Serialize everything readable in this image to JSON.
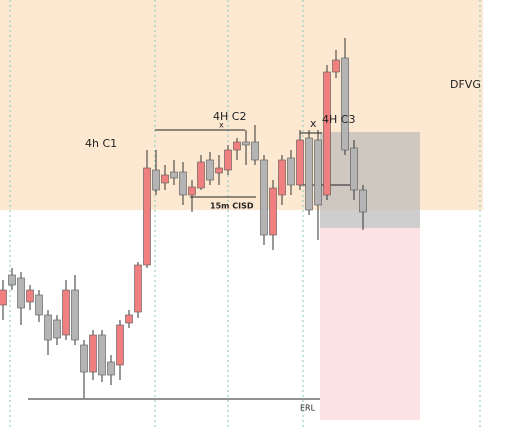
{
  "chart_data": {
    "type": "candlestick",
    "open": [
      122,
      152,
      149,
      125,
      132,
      112,
      107,
      92,
      137,
      82,
      55,
      92,
      65,
      62,
      104,
      115,
      162,
      257,
      244,
      255,
      255,
      232,
      239,
      267,
      254,
      257,
      277,
      285,
      285,
      267,
      192,
      232,
      269,
      242,
      289,
      287,
      232,
      355,
      369,
      279,
      237
    ],
    "high": [
      147,
      159,
      155,
      142,
      137,
      117,
      112,
      147,
      152,
      87,
      97,
      97,
      72,
      107,
      117,
      165,
      277,
      277,
      262,
      267,
      265,
      247,
      272,
      275,
      272,
      282,
      289,
      297,
      302,
      272,
      247,
      272,
      277,
      297,
      297,
      297,
      362,
      377,
      389,
      287,
      242
    ],
    "low": [
      107,
      137,
      102,
      117,
      105,
      72,
      82,
      87,
      82,
      29,
      47,
      45,
      42,
      47,
      99,
      109,
      159,
      232,
      237,
      242,
      222,
      215,
      237,
      242,
      242,
      252,
      267,
      262,
      262,
      182,
      177,
      222,
      232,
      237,
      212,
      187,
      227,
      349,
      272,
      227,
      197
    ],
    "close": [
      137,
      142,
      119,
      137,
      112,
      87,
      89,
      137,
      87,
      55,
      92,
      52,
      52,
      102,
      112,
      162,
      259,
      237,
      252,
      249,
      232,
      240,
      265,
      247,
      259,
      277,
      285,
      282,
      267,
      192,
      239,
      267,
      242,
      287,
      217,
      222,
      355,
      367,
      277,
      237,
      215
    ],
    "up_color": "#f08080",
    "down_color": "#b4b4b4",
    "ylim": [
      0,
      427
    ],
    "annotations": [
      "4h C1",
      "4H C2",
      "x",
      "4H C3",
      "x",
      "15m CISD",
      "DFVG",
      "ERL"
    ]
  }
}
